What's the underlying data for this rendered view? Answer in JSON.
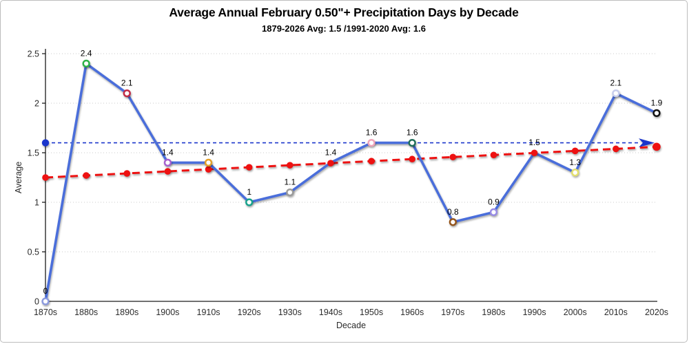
{
  "chart_data": {
    "type": "line",
    "title": "Average Annual February 0.50\"+ Precipitation Days by Decade",
    "subtitle": "1879-2026 Avg: 1.5 /1991-2020 Avg: 1.6",
    "xlabel": "Decade",
    "ylabel": "Average",
    "categories": [
      "1870s",
      "1880s",
      "1890s",
      "1900s",
      "1910s",
      "1920s",
      "1930s",
      "1940s",
      "1950s",
      "1960s",
      "1970s",
      "1980s",
      "1990s",
      "2000s",
      "2010s",
      "2020s"
    ],
    "series": [
      {
        "name": "decade-average",
        "type": "line",
        "color": "#4a6edb",
        "values": [
          0,
          2.4,
          2.1,
          1.4,
          1.4,
          1,
          1.1,
          1.4,
          1.6,
          1.6,
          0.8,
          0.9,
          1.5,
          1.3,
          2.1,
          1.9
        ],
        "labels": [
          "0",
          "2.4",
          "2.1",
          "1.4",
          "1.4",
          "1",
          "1.1",
          "1.4",
          "1.6",
          "1.6",
          "0.8",
          "0.9",
          "1.5",
          "1.3",
          "2.1",
          "1.9"
        ],
        "marker_colors": [
          "#8c9ade",
          "#2eb348",
          "#c22b46",
          "#a661cf",
          "#e3a029",
          "#17a28c",
          "#9b9b9b",
          null,
          "#f0a3b8",
          "#1f6e5a",
          "#95551c",
          "#988ce6",
          null,
          "#e3e06e",
          "#c7cdec",
          "#111111"
        ]
      },
      {
        "name": "linear-trend",
        "type": "trend",
        "color": "#ee1111",
        "start": 1.25,
        "end": 1.56
      },
      {
        "name": "reference-1991-2020-avg",
        "type": "refline",
        "color": "#1a35cc",
        "value": 1.6
      }
    ],
    "y_ticks": [
      "0",
      "0.5",
      "1",
      "1.5",
      "2",
      "2.5"
    ],
    "y_tick_values": [
      0,
      0.5,
      1,
      1.5,
      2,
      2.5
    ],
    "ylim": [
      0,
      2.5
    ],
    "grid": "horizontal-dotted",
    "legend": "none"
  }
}
